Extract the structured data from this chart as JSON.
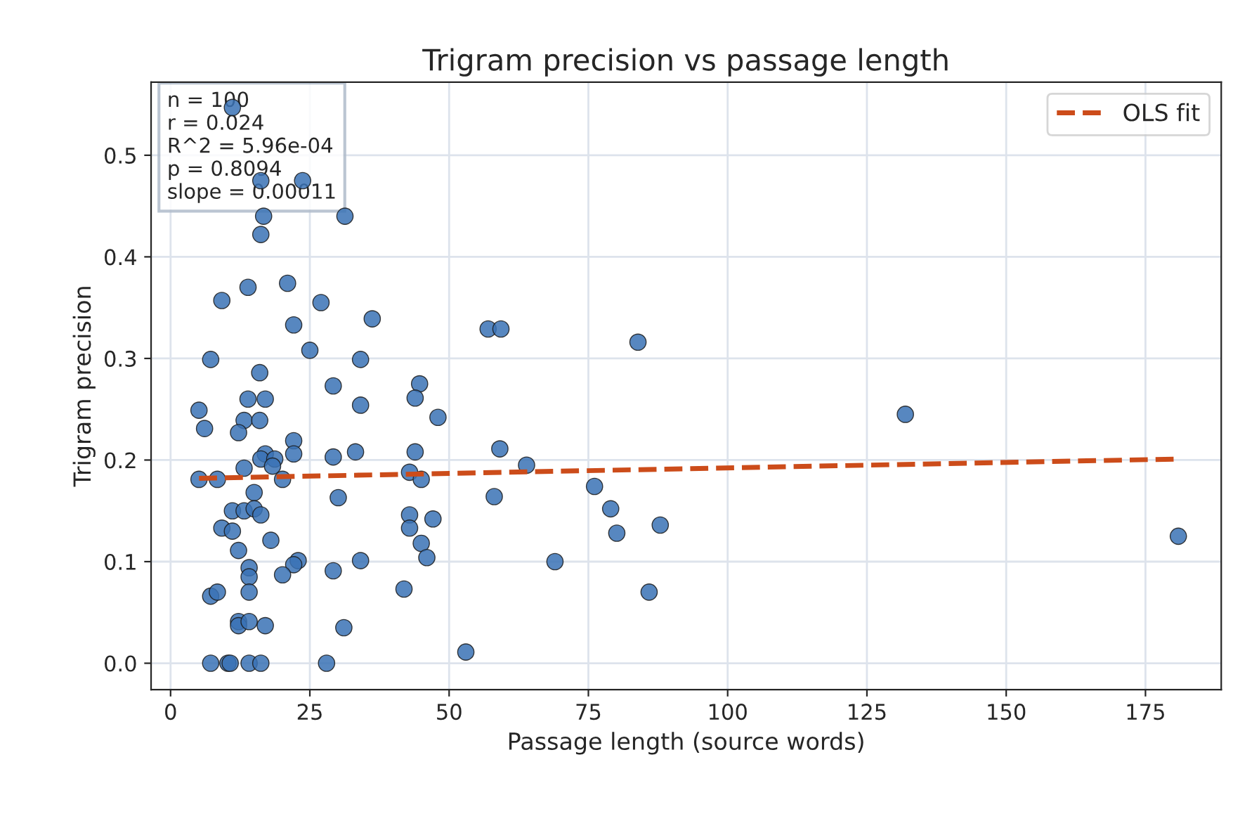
{
  "chart_data": {
    "type": "scatter",
    "title": "Trigram precision vs passage length",
    "xlabel": "Passage length (source words)",
    "ylabel": "Trigram precision",
    "series": [
      {
        "marker": "circle",
        "color": "#3a72b5",
        "x": [
          11.1,
          16.2,
          23.7,
          16.7,
          31.3,
          16.2,
          9.2,
          13.9,
          21.0,
          27.0,
          22.1,
          36.2,
          7.2,
          25.0,
          34.1,
          16.0,
          29.2,
          44.7,
          43.9,
          13.9,
          17.0,
          34.1,
          5.1,
          13.2,
          16.0,
          6.1,
          12.2,
          22.1,
          22.1,
          17.0,
          16.2,
          18.7,
          29.2,
          33.2,
          43.9,
          13.2,
          18.3,
          5.1,
          8.4,
          20.1,
          42.9,
          45.0,
          15.0,
          30.1,
          11.1,
          13.2,
          15.0,
          16.2,
          42.9,
          9.2,
          11.1,
          42.9,
          18.0,
          45.0,
          12.2,
          46.0,
          14.1,
          22.9,
          22.1,
          34.1,
          14.1,
          20.1,
          29.2,
          14.1,
          7.2,
          8.4,
          41.9,
          12.2,
          12.2,
          14.1,
          17.0,
          31.1,
          7.2,
          10.3,
          10.7,
          14.1,
          16.2,
          28.0,
          57.0,
          59.3,
          83.9,
          48.0,
          59.1,
          63.9,
          58.1,
          76.1,
          79.0,
          80.1,
          87.9,
          47.1,
          69.0,
          85.9,
          53.0,
          131.9,
          180.9
        ],
        "values": [
          0.547,
          0.475,
          0.475,
          0.44,
          0.44,
          0.422,
          0.357,
          0.37,
          0.374,
          0.355,
          0.333,
          0.339,
          0.299,
          0.308,
          0.299,
          0.286,
          0.273,
          0.275,
          0.261,
          0.26,
          0.26,
          0.254,
          0.249,
          0.239,
          0.239,
          0.231,
          0.227,
          0.219,
          0.206,
          0.206,
          0.201,
          0.201,
          0.203,
          0.208,
          0.208,
          0.192,
          0.194,
          0.181,
          0.181,
          0.181,
          0.188,
          0.181,
          0.168,
          0.163,
          0.15,
          0.15,
          0.152,
          0.146,
          0.146,
          0.133,
          0.13,
          0.133,
          0.121,
          0.118,
          0.111,
          0.104,
          0.094,
          0.101,
          0.097,
          0.101,
          0.085,
          0.087,
          0.091,
          0.07,
          0.066,
          0.07,
          0.073,
          0.041,
          0.037,
          0.041,
          0.037,
          0.035,
          0.0,
          0.0,
          0.0,
          0.0,
          0.0,
          0.0,
          0.329,
          0.329,
          0.316,
          0.242,
          0.211,
          0.195,
          0.164,
          0.174,
          0.152,
          0.128,
          0.136,
          0.142,
          0.1,
          0.07,
          0.011,
          0.245,
          0.125
        ]
      },
      {
        "type": "line",
        "name": "OLS fit",
        "color": "#cc4c1a",
        "line_style": "dashed",
        "x": [
          5.1,
          180.9
        ],
        "values": [
          0.182,
          0.201
        ]
      }
    ],
    "xlim": [
      -3.5,
      188.6
    ],
    "ylim": [
      -0.026,
      0.572
    ],
    "xticks": [
      0,
      25,
      50,
      75,
      100,
      125,
      150,
      175
    ],
    "yticks": [
      {
        "value": 0,
        "label": "0.0"
      },
      {
        "value": 0.1,
        "label": "0.1"
      },
      {
        "value": 0.2,
        "label": "0.2"
      },
      {
        "value": 0.3,
        "label": "0.3"
      },
      {
        "value": 0.4,
        "label": "0.4"
      },
      {
        "value": 0.5,
        "label": "0.5"
      }
    ],
    "annotations": [
      "n = 100\nr = 0.024\nR^2 = 5.96e-04\np = 0.8094\nslope = 0.00011"
    ],
    "grid": true,
    "legend": "top right"
  }
}
